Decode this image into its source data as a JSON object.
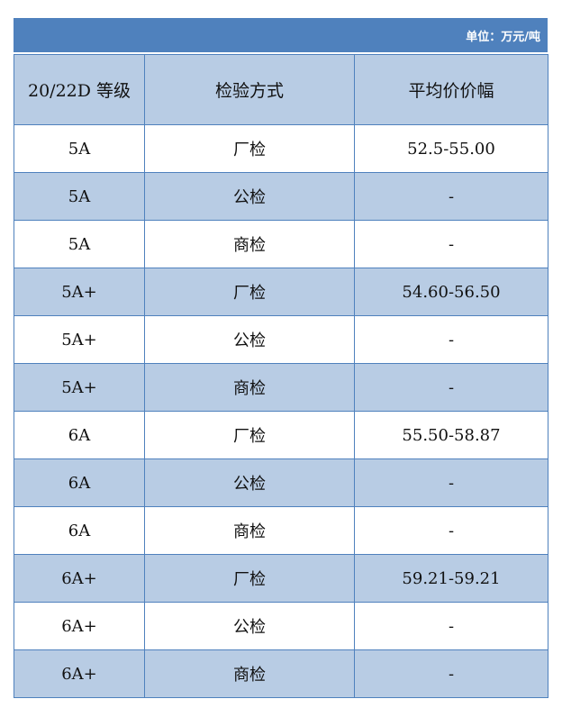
{
  "unit_label": "单位：万元/吨",
  "colors": {
    "header_bar": "#4F81BD",
    "alt_row": "#B8CCE4",
    "border": "#4F81BD"
  },
  "columns": [
    "20/22D 等级",
    "检验方式",
    "平均价价幅"
  ],
  "rows": [
    [
      "5A",
      "厂检",
      "52.5-55.00"
    ],
    [
      "5A",
      "公检",
      "-"
    ],
    [
      "5A",
      "商检",
      "-"
    ],
    [
      "5A+",
      "厂检",
      "54.60-56.50"
    ],
    [
      "5A+",
      "公检",
      "-"
    ],
    [
      "5A+",
      "商检",
      "-"
    ],
    [
      "6A",
      "厂检",
      "55.50-58.87"
    ],
    [
      "6A",
      "公检",
      "-"
    ],
    [
      "6A",
      "商检",
      "-"
    ],
    [
      "6A+",
      "厂检",
      "59.21-59.21"
    ],
    [
      "6A+",
      "公检",
      "-"
    ],
    [
      "6A+",
      "商检",
      "-"
    ]
  ]
}
